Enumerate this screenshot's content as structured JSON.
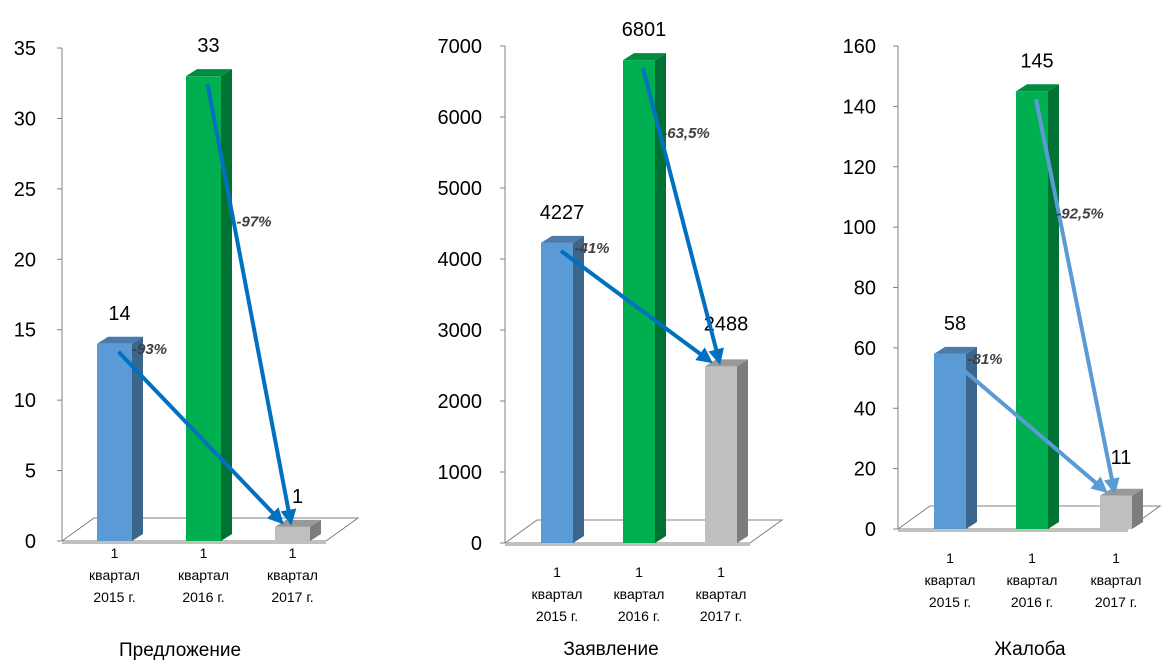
{
  "colors": {
    "bar_2015": "#5b9bd5",
    "bar_2016": "#00b050",
    "bar_2017": "#bfbfbf",
    "arrow_dark": "#0070c0",
    "arrow_light": "#5b9bd5",
    "floor": "#ffffff",
    "axis": "#808080"
  },
  "chart_data": [
    {
      "type": "bar",
      "title": "",
      "xlabel": "Предложение",
      "ylabel": "",
      "categories": [
        [
          "1",
          "квартал",
          "2015 г."
        ],
        [
          "1",
          "квартал",
          "2016 г."
        ],
        [
          "1",
          "квартал",
          "2017 г."
        ]
      ],
      "values": [
        14,
        33,
        1
      ],
      "data_labels": [
        "14",
        "33",
        "1"
      ],
      "ylim": [
        0,
        35
      ],
      "ticks": [
        0,
        5,
        10,
        15,
        20,
        25,
        30,
        35
      ],
      "arrows": [
        {
          "from": 0,
          "to": 2,
          "label": "-93%",
          "style": "dark"
        },
        {
          "from": 1,
          "to": 2,
          "label": "-97%",
          "style": "dark"
        }
      ]
    },
    {
      "type": "bar",
      "title": "",
      "xlabel": "Заявление",
      "ylabel": "",
      "categories": [
        [
          "1",
          "квартал",
          "2015 г."
        ],
        [
          "1",
          "квартал",
          "2016 г."
        ],
        [
          "1",
          "квартал",
          "2017 г."
        ]
      ],
      "values": [
        4227,
        6801,
        2488
      ],
      "data_labels": [
        "4227",
        "6801",
        "2488"
      ],
      "ylim": [
        0,
        7000
      ],
      "ticks": [
        0,
        1000,
        2000,
        3000,
        4000,
        5000,
        6000,
        7000
      ],
      "arrows": [
        {
          "from": 0,
          "to": 2,
          "label": "-41%",
          "style": "dark"
        },
        {
          "from": 1,
          "to": 2,
          "label": "-63,5%",
          "style": "dark"
        }
      ]
    },
    {
      "type": "bar",
      "title": "",
      "xlabel": "Жалоба",
      "ylabel": "",
      "categories": [
        [
          "1",
          "квартал",
          "2015 г."
        ],
        [
          "1",
          "квартал",
          "2016 г."
        ],
        [
          "1",
          "квартал",
          "2017 г."
        ]
      ],
      "values": [
        58,
        145,
        11
      ],
      "data_labels": [
        "58",
        "145",
        "11"
      ],
      "ylim": [
        0,
        160
      ],
      "ticks": [
        0,
        20,
        40,
        60,
        80,
        100,
        120,
        140,
        160
      ],
      "arrows": [
        {
          "from": 0,
          "to": 2,
          "label": "-81%",
          "style": "light"
        },
        {
          "from": 1,
          "to": 2,
          "label": "-92,5%",
          "style": "light"
        }
      ]
    }
  ]
}
